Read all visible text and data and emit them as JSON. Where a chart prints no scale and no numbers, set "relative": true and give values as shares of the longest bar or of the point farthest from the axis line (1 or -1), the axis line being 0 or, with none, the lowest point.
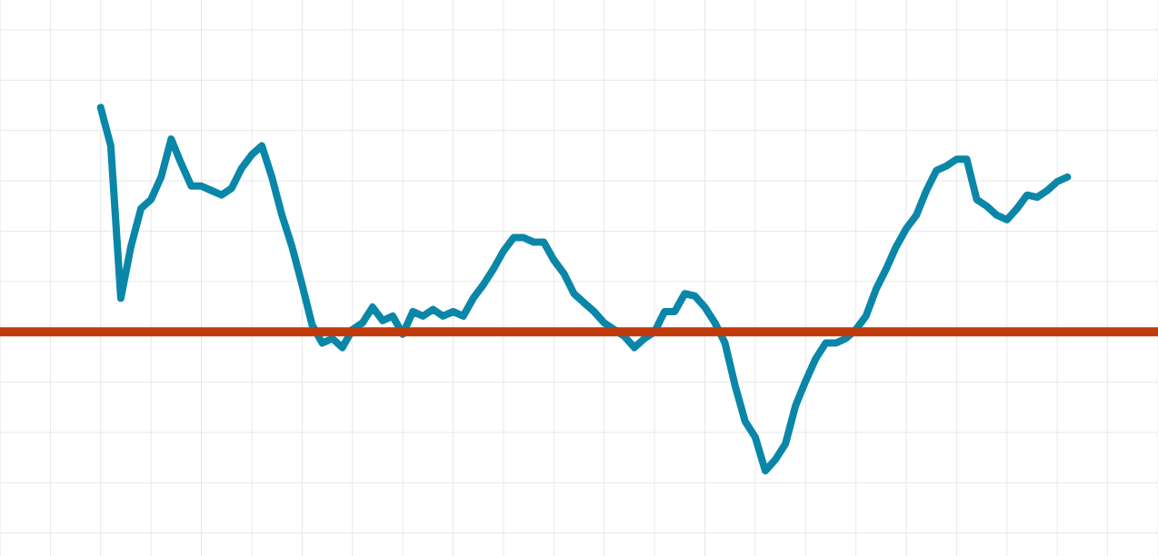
{
  "chart_data": {
    "type": "line",
    "relative": true,
    "grid": true,
    "legend": false,
    "marker": "none",
    "line_style": "solid",
    "categories": [
      null,
      null,
      null,
      null,
      null,
      null,
      null,
      null,
      null,
      null,
      null,
      null,
      null,
      null,
      null,
      null,
      null,
      null,
      null,
      null,
      null,
      null,
      null,
      null,
      null,
      null,
      null,
      null,
      null,
      null,
      null,
      null,
      null,
      null,
      null,
      null,
      null,
      null,
      null,
      null,
      null,
      null,
      null,
      null,
      null,
      null,
      null,
      null,
      null,
      null,
      null,
      null,
      null,
      null,
      null,
      null,
      null,
      null,
      null,
      null,
      null,
      null,
      null,
      null,
      null,
      null,
      null,
      null,
      null,
      null,
      null,
      null,
      null,
      null,
      null,
      null,
      null,
      null,
      null,
      null,
      null,
      null,
      null,
      null,
      null,
      null,
      null,
      null,
      null,
      null,
      null,
      null,
      null,
      null,
      null,
      null,
      null,
      null,
      null,
      null,
      null,
      null,
      null,
      null,
      null,
      null,
      null,
      null,
      null,
      null,
      null,
      null,
      null,
      null,
      null,
      null
    ],
    "series": [
      {
        "color": "#0a87a8",
        "values": [
          null,
          null,
          null,
          null,
          null,
          null,
          null,
          null,
          null,
          null,
          1.0,
          0.83,
          0.15,
          0.38,
          0.55,
          0.59,
          0.69,
          0.86,
          0.75,
          0.65,
          0.65,
          0.63,
          0.61,
          0.64,
          0.73,
          0.79,
          0.83,
          0.69,
          0.52,
          0.38,
          0.21,
          0.03,
          -0.05,
          -0.03,
          -0.07,
          0.01,
          0.04,
          0.11,
          0.05,
          0.07,
          -0.01,
          0.09,
          0.07,
          0.1,
          0.07,
          0.09,
          0.07,
          0.15,
          0.21,
          0.28,
          0.36,
          0.42,
          0.42,
          0.4,
          0.4,
          0.32,
          0.26,
          0.17,
          0.13,
          0.09,
          0.04,
          0.01,
          -0.02,
          -0.07,
          -0.03,
          0.0,
          0.09,
          0.09,
          0.17,
          0.16,
          0.11,
          0.04,
          -0.05,
          -0.24,
          -0.4,
          -0.47,
          -0.62,
          -0.57,
          -0.5,
          -0.33,
          -0.22,
          -0.12,
          -0.05,
          -0.05,
          -0.03,
          0.01,
          0.07,
          0.19,
          0.28,
          0.38,
          0.46,
          0.52,
          0.63,
          0.72,
          0.74,
          0.77,
          0.77,
          0.59,
          0.56,
          0.52,
          0.5,
          0.55,
          0.61,
          0.6,
          0.63,
          0.67,
          0.69,
          null,
          null,
          null,
          null,
          null,
          null,
          null,
          null,
          null
        ]
      }
    ],
    "ref_lines": [
      {
        "axis": "y",
        "value": 0,
        "color": "#c03a0c"
      }
    ]
  }
}
